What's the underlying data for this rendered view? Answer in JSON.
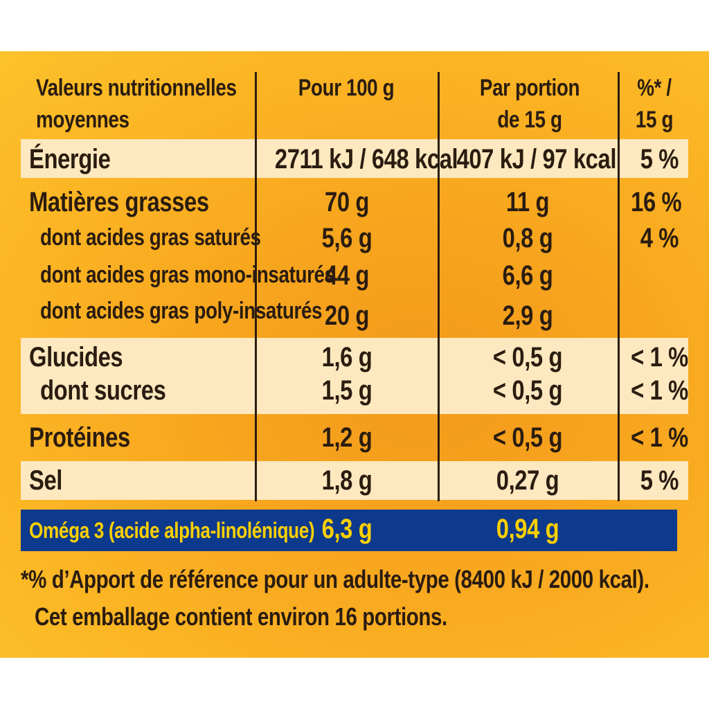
{
  "header": {
    "col1": "Valeurs nutritionnelles",
    "col1_line2": "moyennes",
    "col2": "Pour 100 g",
    "col3": "Par portion",
    "col3_line2": "de 15 g",
    "col4": "%* /",
    "col4_line2": "15 g"
  },
  "rows": [
    {
      "label": "Énergie",
      "per100": "2711 kJ / 648 kcal",
      "portion": "407 kJ / 97 kcal",
      "pct": "5 %"
    },
    {
      "label": "Matières grasses",
      "per100": "70 g",
      "portion": "11 g",
      "pct": "16 %"
    },
    {
      "label": "dont acides gras saturés",
      "per100": "5,6 g",
      "portion": "0,8 g",
      "pct": "4 %"
    },
    {
      "label": "dont acides gras mono-insaturés",
      "per100": "44 g",
      "portion": "6,6 g",
      "pct": ""
    },
    {
      "label": "dont acides gras poly-insaturés",
      "per100": "20 g",
      "portion": "2,9 g",
      "pct": ""
    },
    {
      "label": "Glucides",
      "per100": "1,6 g",
      "portion": "< 0,5 g",
      "pct": "< 1 %"
    },
    {
      "label": "dont sucres",
      "per100": "1,5 g",
      "portion": "< 0,5 g",
      "pct": "< 1 %"
    },
    {
      "label": "Protéines",
      "per100": "1,2 g",
      "portion": "< 0,5 g",
      "pct": "< 1 %"
    },
    {
      "label": "Sel",
      "per100": "1,8 g",
      "portion": "0,27 g",
      "pct": "5 %"
    }
  ],
  "omega": {
    "label": "Oméga 3 (acide alpha-linolénique)",
    "per100": "6,3 g",
    "portion": "0,94 g"
  },
  "footnote": {
    "line1": "*% d’Apport de référence pour un adulte-type (8400 kJ / 2000 kcal).",
    "line2": "Cet emballage contient environ 16 portions."
  },
  "colors": {
    "band_light": "#fde8bf",
    "omega_band": "#0d3a8c",
    "omega_text": "#fdd000",
    "text": "#2a1c10"
  }
}
